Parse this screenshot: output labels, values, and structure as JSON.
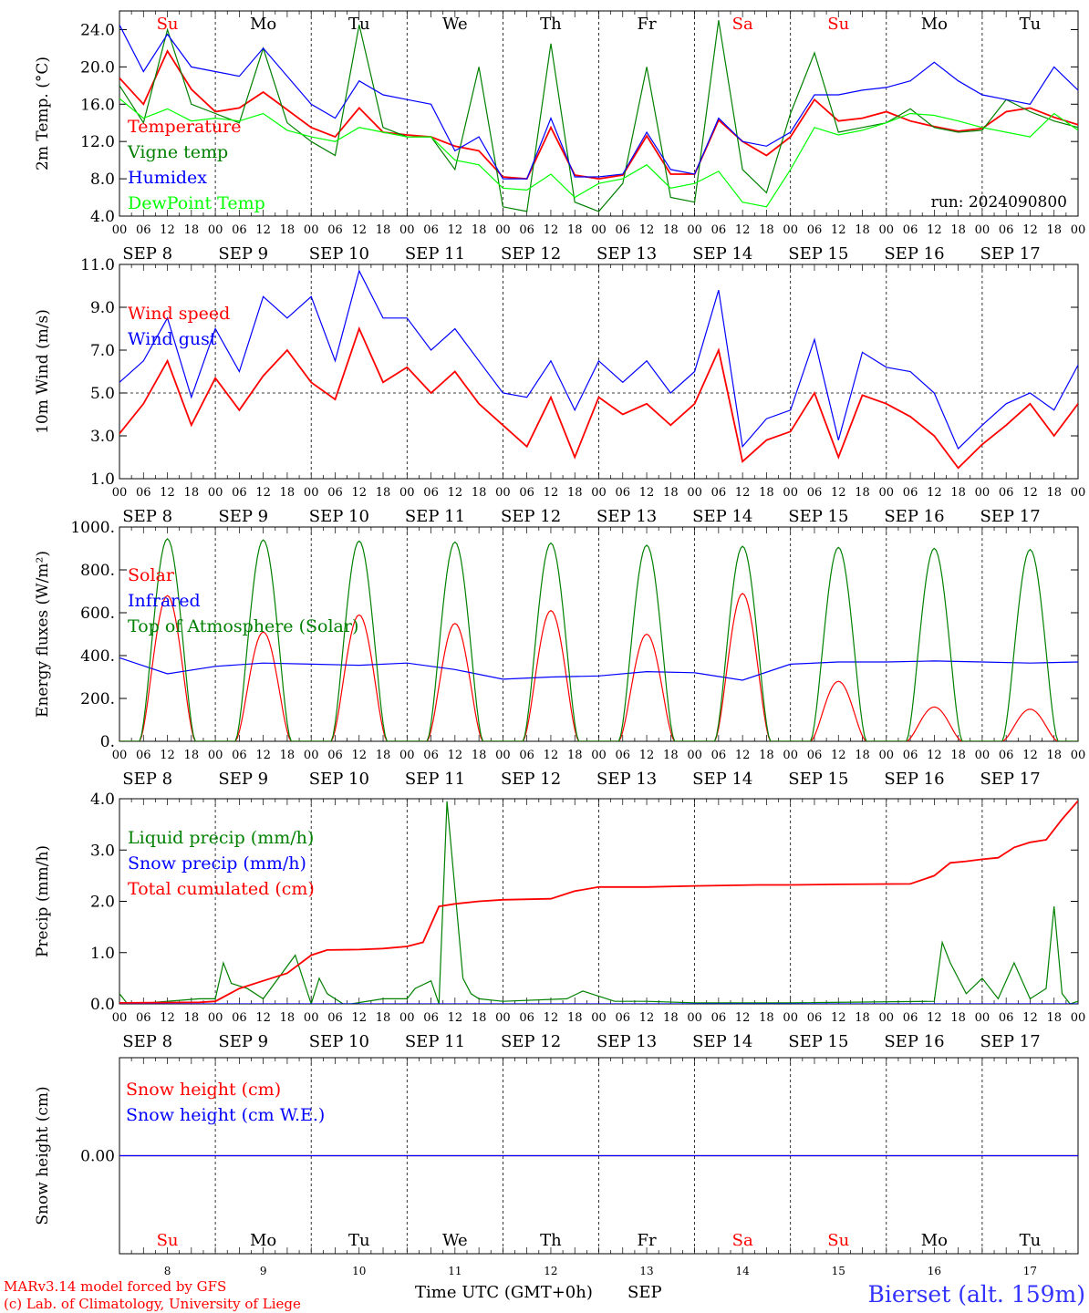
{
  "days": {
    "abbr": [
      "Su",
      "Mo",
      "Tu",
      "We",
      "Th",
      "Fr",
      "Sa",
      "Su",
      "Mo",
      "Tu"
    ],
    "abbr_colors": [
      "#ff0000",
      "#000000",
      "#000000",
      "#000000",
      "#000000",
      "#000000",
      "#ff0000",
      "#ff0000",
      "#000000",
      "#000000"
    ],
    "dates": [
      "SEP  8",
      "SEP  9",
      "SEP 10",
      "SEP 11",
      "SEP 12",
      "SEP 13",
      "SEP 14",
      "SEP 15",
      "SEP 16",
      "SEP 17"
    ],
    "numbers": [
      "8",
      "9",
      "10",
      "11",
      "12",
      "13",
      "14",
      "15",
      "16",
      "17"
    ],
    "hour_labels": [
      "00",
      "06",
      "12",
      "18"
    ],
    "end_label": "00"
  },
  "footer": {
    "model": "MARv3.14 model forced by GFS",
    "lab": "(c) Lab. of Climatology, University of Liege",
    "axis_title": "Time UTC (GMT+0h)",
    "month": "SEP",
    "station": "Bierset (alt. 159m)"
  },
  "chart_data": [
    {
      "id": "temp",
      "type": "line",
      "ylabel": "2m Temp. (°C)",
      "ylim": [
        4,
        26
      ],
      "yticks": [
        4,
        8,
        12,
        16,
        20,
        24
      ],
      "ytick_labels": [
        "4.0",
        "8.0",
        "12.0",
        "16.0",
        "20.0",
        "24.0"
      ],
      "annotation": "run: 2024090800",
      "x_unit": "hours since 2024-09-08 00 UTC",
      "series": [
        {
          "name": "Temperature",
          "color": "#ff0000",
          "x": [
            0,
            6,
            12,
            18,
            24,
            30,
            36,
            42,
            48,
            54,
            60,
            66,
            72,
            78,
            84,
            90,
            96,
            102,
            108,
            114,
            120,
            126,
            132,
            138,
            144,
            150,
            156,
            162,
            168,
            174,
            180,
            186,
            192,
            198,
            204,
            210,
            216,
            222,
            228,
            234,
            240
          ],
          "y": [
            18.8,
            16.0,
            21.7,
            17.6,
            15.2,
            15.6,
            17.3,
            15.4,
            13.5,
            12.5,
            15.6,
            13.0,
            12.7,
            12.5,
            11.5,
            11.0,
            8.2,
            8.0,
            13.5,
            8.4,
            8.0,
            8.4,
            12.6,
            8.5,
            8.5,
            14.3,
            12.0,
            10.5,
            12.5,
            16.5,
            14.2,
            14.5,
            15.2,
            14.2,
            13.6,
            13.1,
            13.4,
            15.2,
            15.6,
            14.6,
            13.8
          ]
        },
        {
          "name": "Vigne temp",
          "color": "#008000",
          "x": [
            0,
            6,
            12,
            18,
            24,
            30,
            36,
            42,
            48,
            54,
            60,
            66,
            72,
            78,
            84,
            90,
            96,
            102,
            108,
            114,
            120,
            126,
            132,
            138,
            144,
            150,
            156,
            162,
            168,
            174,
            180,
            186,
            192,
            198,
            204,
            210,
            216,
            222,
            228,
            234,
            240
          ],
          "y": [
            18.0,
            14.0,
            24.0,
            16.0,
            15.0,
            14.0,
            22.0,
            14.0,
            12.0,
            10.5,
            24.5,
            13.5,
            12.5,
            12.5,
            9.0,
            20.0,
            5.0,
            4.5,
            22.5,
            5.5,
            4.5,
            7.5,
            20.0,
            6.0,
            5.5,
            25.0,
            9.0,
            6.5,
            15.0,
            21.5,
            13.0,
            13.5,
            14.0,
            15.5,
            13.5,
            13.0,
            13.2,
            16.5,
            15.2,
            14.2,
            13.5
          ]
        },
        {
          "name": "Humidex",
          "color": "#0000ff",
          "x": [
            0,
            6,
            12,
            18,
            24,
            30,
            36,
            42,
            48,
            54,
            60,
            66,
            72,
            78,
            84,
            90,
            96,
            102,
            108,
            114,
            120,
            126,
            132,
            138,
            144,
            150,
            156,
            162,
            168,
            174,
            180,
            186,
            192,
            198,
            204,
            210,
            216,
            222,
            228,
            234,
            240
          ],
          "y": [
            24.5,
            19.5,
            23.5,
            20.0,
            19.5,
            19.0,
            22.0,
            19.0,
            16.0,
            14.5,
            18.5,
            17.0,
            16.5,
            16.0,
            11.0,
            12.5,
            8.0,
            8.0,
            14.5,
            8.2,
            8.2,
            8.5,
            13.0,
            9.0,
            8.5,
            14.5,
            12.0,
            11.5,
            13.0,
            17.0,
            17.0,
            17.5,
            17.8,
            18.5,
            20.5,
            18.5,
            17.0,
            16.5,
            16.0,
            20.0,
            17.5
          ]
        },
        {
          "name": "DewPoint Temp",
          "color": "#00ff00",
          "x": [
            0,
            6,
            12,
            18,
            24,
            30,
            36,
            42,
            48,
            54,
            60,
            66,
            72,
            78,
            84,
            90,
            96,
            102,
            108,
            114,
            120,
            126,
            132,
            138,
            144,
            150,
            156,
            162,
            168,
            174,
            180,
            186,
            192,
            198,
            204,
            210,
            216,
            222,
            228,
            234,
            240
          ],
          "y": [
            16.6,
            14.5,
            15.5,
            14.2,
            14.5,
            14.2,
            15.0,
            13.2,
            12.5,
            12.0,
            13.5,
            13.0,
            12.5,
            12.5,
            10.0,
            9.5,
            7.0,
            6.8,
            8.5,
            6.0,
            7.5,
            8.0,
            9.5,
            7.0,
            7.5,
            8.8,
            5.5,
            5.0,
            9.0,
            13.5,
            12.7,
            13.2,
            14.0,
            15.0,
            14.8,
            14.2,
            13.5,
            13.0,
            12.5,
            15.0,
            13.2
          ]
        }
      ]
    },
    {
      "id": "wind",
      "type": "line",
      "ylabel": "10m Wind (m/s)",
      "ylim": [
        1,
        11
      ],
      "yticks": [
        1,
        3,
        5,
        7,
        9,
        11
      ],
      "ytick_labels": [
        "1.0",
        "3.0",
        "5.0",
        "7.0",
        "9.0",
        "11.0"
      ],
      "reference_line": 5,
      "x_unit": "hours since 2024-09-08 00 UTC",
      "series": [
        {
          "name": "Wind speed",
          "color": "#ff0000",
          "x": [
            0,
            6,
            12,
            18,
            24,
            30,
            36,
            42,
            48,
            54,
            60,
            66,
            72,
            78,
            84,
            90,
            96,
            102,
            108,
            114,
            120,
            126,
            132,
            138,
            144,
            150,
            156,
            162,
            168,
            174,
            180,
            186,
            192,
            198,
            204,
            210,
            216,
            222,
            228,
            234,
            240
          ],
          "y": [
            3.1,
            4.5,
            6.5,
            3.5,
            5.7,
            4.2,
            5.8,
            7.0,
            5.5,
            4.7,
            8.0,
            5.5,
            6.2,
            5.0,
            6.0,
            4.5,
            3.5,
            2.5,
            4.8,
            2.0,
            4.8,
            4.0,
            4.5,
            3.5,
            4.5,
            7.0,
            1.8,
            2.8,
            3.2,
            5.0,
            2.0,
            4.9,
            4.5,
            3.9,
            3.0,
            1.5,
            2.6,
            3.5,
            4.5,
            3.0,
            4.5
          ]
        },
        {
          "name": "Wind gust",
          "color": "#0000ff",
          "x": [
            0,
            6,
            12,
            18,
            24,
            30,
            36,
            42,
            48,
            54,
            60,
            66,
            72,
            78,
            84,
            90,
            96,
            102,
            108,
            114,
            120,
            126,
            132,
            138,
            144,
            150,
            156,
            162,
            168,
            174,
            180,
            186,
            192,
            198,
            204,
            210,
            216,
            222,
            228,
            234,
            240
          ],
          "y": [
            5.5,
            6.5,
            8.5,
            4.8,
            8.0,
            6.0,
            9.5,
            8.5,
            9.5,
            6.5,
            10.7,
            8.5,
            8.5,
            7.0,
            8.0,
            6.5,
            5.0,
            4.8,
            6.5,
            4.2,
            6.5,
            5.5,
            6.5,
            5.0,
            6.0,
            9.8,
            2.5,
            3.8,
            4.2,
            7.5,
            2.8,
            6.9,
            6.2,
            6.0,
            5.0,
            2.4,
            3.5,
            4.5,
            5.0,
            4.2,
            6.3
          ]
        }
      ]
    },
    {
      "id": "energy",
      "type": "line",
      "ylabel": "Energy fluxes (W/m²)",
      "ylim": [
        0,
        1000
      ],
      "yticks": [
        0,
        200,
        400,
        600,
        800,
        1000
      ],
      "ytick_labels": [
        "0.",
        "200.",
        "400.",
        "600.",
        "800.",
        "1000."
      ],
      "x_unit": "hours since 2024-09-08 00 UTC",
      "series": [
        {
          "name": "Solar",
          "color": "#ff0000",
          "days": [
            0,
            1,
            2,
            3,
            4,
            5,
            6,
            7,
            8,
            9
          ],
          "daily_peak": [
            680,
            510,
            590,
            550,
            610,
            500,
            690,
            280,
            160,
            150
          ],
          "sunrise_h": 5,
          "sunset_h": 19
        },
        {
          "name": "Infrared",
          "color": "#0000ff",
          "x": [
            0,
            12,
            24,
            36,
            48,
            60,
            72,
            84,
            96,
            108,
            120,
            132,
            144,
            156,
            168,
            180,
            192,
            204,
            216,
            228,
            240
          ],
          "y": [
            390,
            315,
            350,
            365,
            360,
            355,
            365,
            335,
            290,
            300,
            305,
            325,
            320,
            285,
            360,
            370,
            370,
            375,
            370,
            365,
            370
          ]
        },
        {
          "name": "Top of Atmosphere (Solar)",
          "color": "#008000",
          "days": [
            0,
            1,
            2,
            3,
            4,
            5,
            6,
            7,
            8,
            9
          ],
          "daily_peak": [
            945,
            940,
            935,
            930,
            925,
            915,
            910,
            905,
            900,
            895
          ],
          "sunrise_h": 5,
          "sunset_h": 19
        }
      ]
    },
    {
      "id": "precip",
      "type": "line",
      "ylabel": "Precip (mm/h)",
      "ylim": [
        0,
        4
      ],
      "yticks": [
        0,
        1,
        2,
        3,
        4
      ],
      "ytick_labels": [
        "0.0",
        "1.0",
        "2.0",
        "3.0",
        "4.0"
      ],
      "x_unit": "hours since 2024-09-08 00 UTC",
      "series": [
        {
          "name": "Liquid precip (mm/h)",
          "color": "#008000",
          "x": [
            0,
            2,
            4,
            20,
            24,
            26,
            28,
            32,
            36,
            44,
            48,
            50,
            52,
            56,
            58,
            66,
            72,
            74,
            78,
            80,
            82,
            86,
            88,
            90,
            96,
            112,
            116,
            120,
            124,
            132,
            144,
            168,
            204,
            206,
            208,
            212,
            216,
            220,
            224,
            228,
            232,
            234,
            236,
            238,
            240
          ],
          "y": [
            0.2,
            0,
            0,
            0.1,
            0.1,
            0.8,
            0.4,
            0.3,
            0.1,
            0.95,
            0,
            0.5,
            0.2,
            0,
            0,
            0.1,
            0.1,
            0.3,
            0.45,
            0,
            3.95,
            0.5,
            0.2,
            0.1,
            0.05,
            0.1,
            0.25,
            0.15,
            0.05,
            0.05,
            0.02,
            0.02,
            0.05,
            1.2,
            0.8,
            0.2,
            0.5,
            0.1,
            0.8,
            0.1,
            0.3,
            1.9,
            0.2,
            0,
            0.05
          ]
        },
        {
          "name": "Snow precip (mm/h)",
          "color": "#0000ff",
          "x": [
            0,
            240
          ],
          "y": [
            0,
            0
          ]
        },
        {
          "name": "Total cumulated (cm)",
          "color": "#ff0000",
          "x": [
            0,
            20,
            24,
            30,
            36,
            42,
            48,
            52,
            60,
            66,
            72,
            76,
            80,
            84,
            90,
            96,
            108,
            114,
            120,
            132,
            144,
            160,
            168,
            180,
            198,
            204,
            208,
            212,
            216,
            220,
            224,
            228,
            232,
            236,
            240
          ],
          "y": [
            0.02,
            0.03,
            0.05,
            0.3,
            0.45,
            0.6,
            0.95,
            1.05,
            1.06,
            1.08,
            1.12,
            1.2,
            1.9,
            1.95,
            2.0,
            2.03,
            2.05,
            2.2,
            2.28,
            2.28,
            2.3,
            2.32,
            2.32,
            2.33,
            2.34,
            2.5,
            2.75,
            2.78,
            2.82,
            2.85,
            3.05,
            3.15,
            3.2,
            3.6,
            3.96
          ]
        }
      ]
    },
    {
      "id": "snow",
      "type": "line",
      "ylabel": "Snow height (cm)",
      "ylim": [
        -0.01,
        0.01
      ],
      "yticks": [
        0
      ],
      "ytick_labels": [
        "0.00"
      ],
      "x_unit": "hours since 2024-09-08 00 UTC",
      "series": [
        {
          "name": "Snow height (cm)",
          "color": "#ff0000",
          "x": [
            0,
            240
          ],
          "y": [
            0,
            0
          ]
        },
        {
          "name": "Snow height (cm W.E.)",
          "color": "#0000ff",
          "x": [
            0,
            240
          ],
          "y": [
            0,
            0
          ]
        }
      ]
    }
  ]
}
